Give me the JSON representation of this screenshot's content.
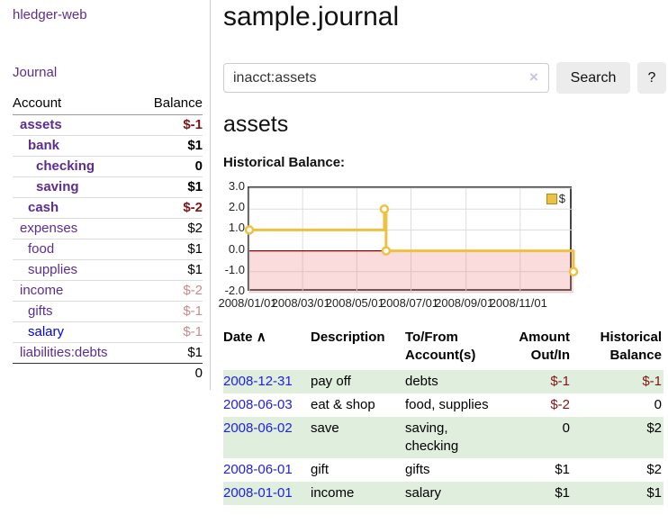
{
  "app": {
    "brand": "hledger-web",
    "nav_journal": "Journal"
  },
  "sidebar": {
    "headers": {
      "account": "Account",
      "balance": "Balance"
    },
    "accounts": [
      {
        "name": "assets",
        "balance": "$-1",
        "depth": 1,
        "bold": true,
        "name_style": "purple",
        "balance_style": "neg-strong"
      },
      {
        "name": "bank",
        "balance": "$1",
        "depth": 2,
        "bold": true,
        "name_style": "purple",
        "balance_style": "plain"
      },
      {
        "name": "checking",
        "balance": "0",
        "depth": 3,
        "bold": true,
        "name_style": "purple",
        "balance_style": "plain"
      },
      {
        "name": "saving",
        "balance": "$1",
        "depth": 3,
        "bold": true,
        "name_style": "purple",
        "balance_style": "plain"
      },
      {
        "name": "cash",
        "balance": "$-2",
        "depth": 2,
        "bold": true,
        "name_style": "purple",
        "balance_style": "neg-strong"
      },
      {
        "name": "expenses",
        "balance": "$2",
        "depth": 1,
        "bold": false,
        "name_style": "purple",
        "balance_style": "plain"
      },
      {
        "name": "food",
        "balance": "$1",
        "depth": 2,
        "bold": false,
        "name_style": "purple",
        "balance_style": "plain"
      },
      {
        "name": "supplies",
        "balance": "$1",
        "depth": 2,
        "bold": false,
        "name_style": "purple",
        "balance_style": "plain"
      },
      {
        "name": "income",
        "balance": "$-2",
        "depth": 1,
        "bold": false,
        "name_style": "purple",
        "balance_style": "neg-faded"
      },
      {
        "name": "gifts",
        "balance": "$-1",
        "depth": 2,
        "bold": false,
        "name_style": "purple",
        "balance_style": "neg-faded"
      },
      {
        "name": "salary",
        "balance": "$-1",
        "depth": 2,
        "bold": false,
        "name_style": "blue",
        "balance_style": "neg-faded"
      },
      {
        "name": "liabilities:debts",
        "balance": "$1",
        "depth": 1,
        "bold": false,
        "name_style": "purple",
        "balance_style": "plain"
      }
    ],
    "total": "0"
  },
  "header": {
    "title": "sample.journal"
  },
  "search": {
    "value": "inacct:assets",
    "clear_icon": "×",
    "button_label": "Search",
    "help_label": "?"
  },
  "account_page": {
    "heading": "assets",
    "chart_label": "Historical Balance:"
  },
  "chart_data": {
    "type": "line",
    "title": "Historical Balance:",
    "step": true,
    "x_range": [
      "2008-01-01",
      "2008-12-31"
    ],
    "ylim": [
      -2,
      3
    ],
    "y_ticks": [
      "3.0",
      "2.0",
      "1.0",
      "0.0",
      "-1.0",
      "-2.0"
    ],
    "x_ticks": [
      {
        "label": "2008/01/01",
        "date": "2008-01-01"
      },
      {
        "label": "2008/03/01",
        "date": "2008-03-01"
      },
      {
        "label": "2008/05/01",
        "date": "2008-05-01"
      },
      {
        "label": "2008/07/01",
        "date": "2008-07-01"
      },
      {
        "label": "2008/09/01",
        "date": "2008-09-01"
      },
      {
        "label": "2008/11/01",
        "date": "2008-11-01"
      }
    ],
    "series": [
      {
        "name": "$",
        "color": "#edc240",
        "points": [
          [
            "2008-01-01",
            1
          ],
          [
            "2008-06-01",
            2
          ],
          [
            "2008-06-03",
            0
          ],
          [
            "2008-12-31",
            -1
          ]
        ]
      }
    ],
    "legend": {
      "label": "$",
      "position": "top-right"
    },
    "grid": true,
    "grid_color": "#dcdcdc",
    "negative_region_color": "#f08080",
    "zero_line_color": "#8b0000",
    "border_color": "#454545"
  },
  "transactions": {
    "headers": {
      "date": "Date",
      "sort_arrow": "∧",
      "description": "Description",
      "tofrom": "To/From Account(s)",
      "amount": "Amount Out/In",
      "balance": "Historical Balance"
    },
    "rows": [
      {
        "date": "2008-12-31",
        "description": "pay off",
        "tofrom": "debts",
        "amount": "$-1",
        "amount_neg": true,
        "balance": "$-1",
        "balance_neg": true,
        "shaded": true
      },
      {
        "date": "2008-06-03",
        "description": "eat & shop",
        "tofrom": "food, supplies",
        "amount": "$-2",
        "amount_neg": true,
        "balance": "0",
        "balance_neg": false,
        "shaded": false
      },
      {
        "date": "2008-06-02",
        "description": "save",
        "tofrom": "saving, checking",
        "amount": "0",
        "amount_neg": false,
        "balance": "$2",
        "balance_neg": false,
        "shaded": true
      },
      {
        "date": "2008-06-01",
        "description": "gift",
        "tofrom": "gifts",
        "amount": "$1",
        "amount_neg": false,
        "balance": "$2",
        "balance_neg": false,
        "shaded": false
      },
      {
        "date": "2008-01-01",
        "description": "income",
        "tofrom": "salary",
        "amount": "$1",
        "amount_neg": false,
        "balance": "$1",
        "balance_neg": false,
        "shaded": true
      }
    ]
  },
  "colors": {
    "link_purple": "#5c2d91",
    "link_blue": "#0000ee",
    "date_blue": "#2222dd",
    "negative_strong": "#801515",
    "negative_faded": "#c58c8c",
    "row_green": "#dfeedd",
    "chart_line": "#edc240",
    "button_bg": "#ececec"
  }
}
